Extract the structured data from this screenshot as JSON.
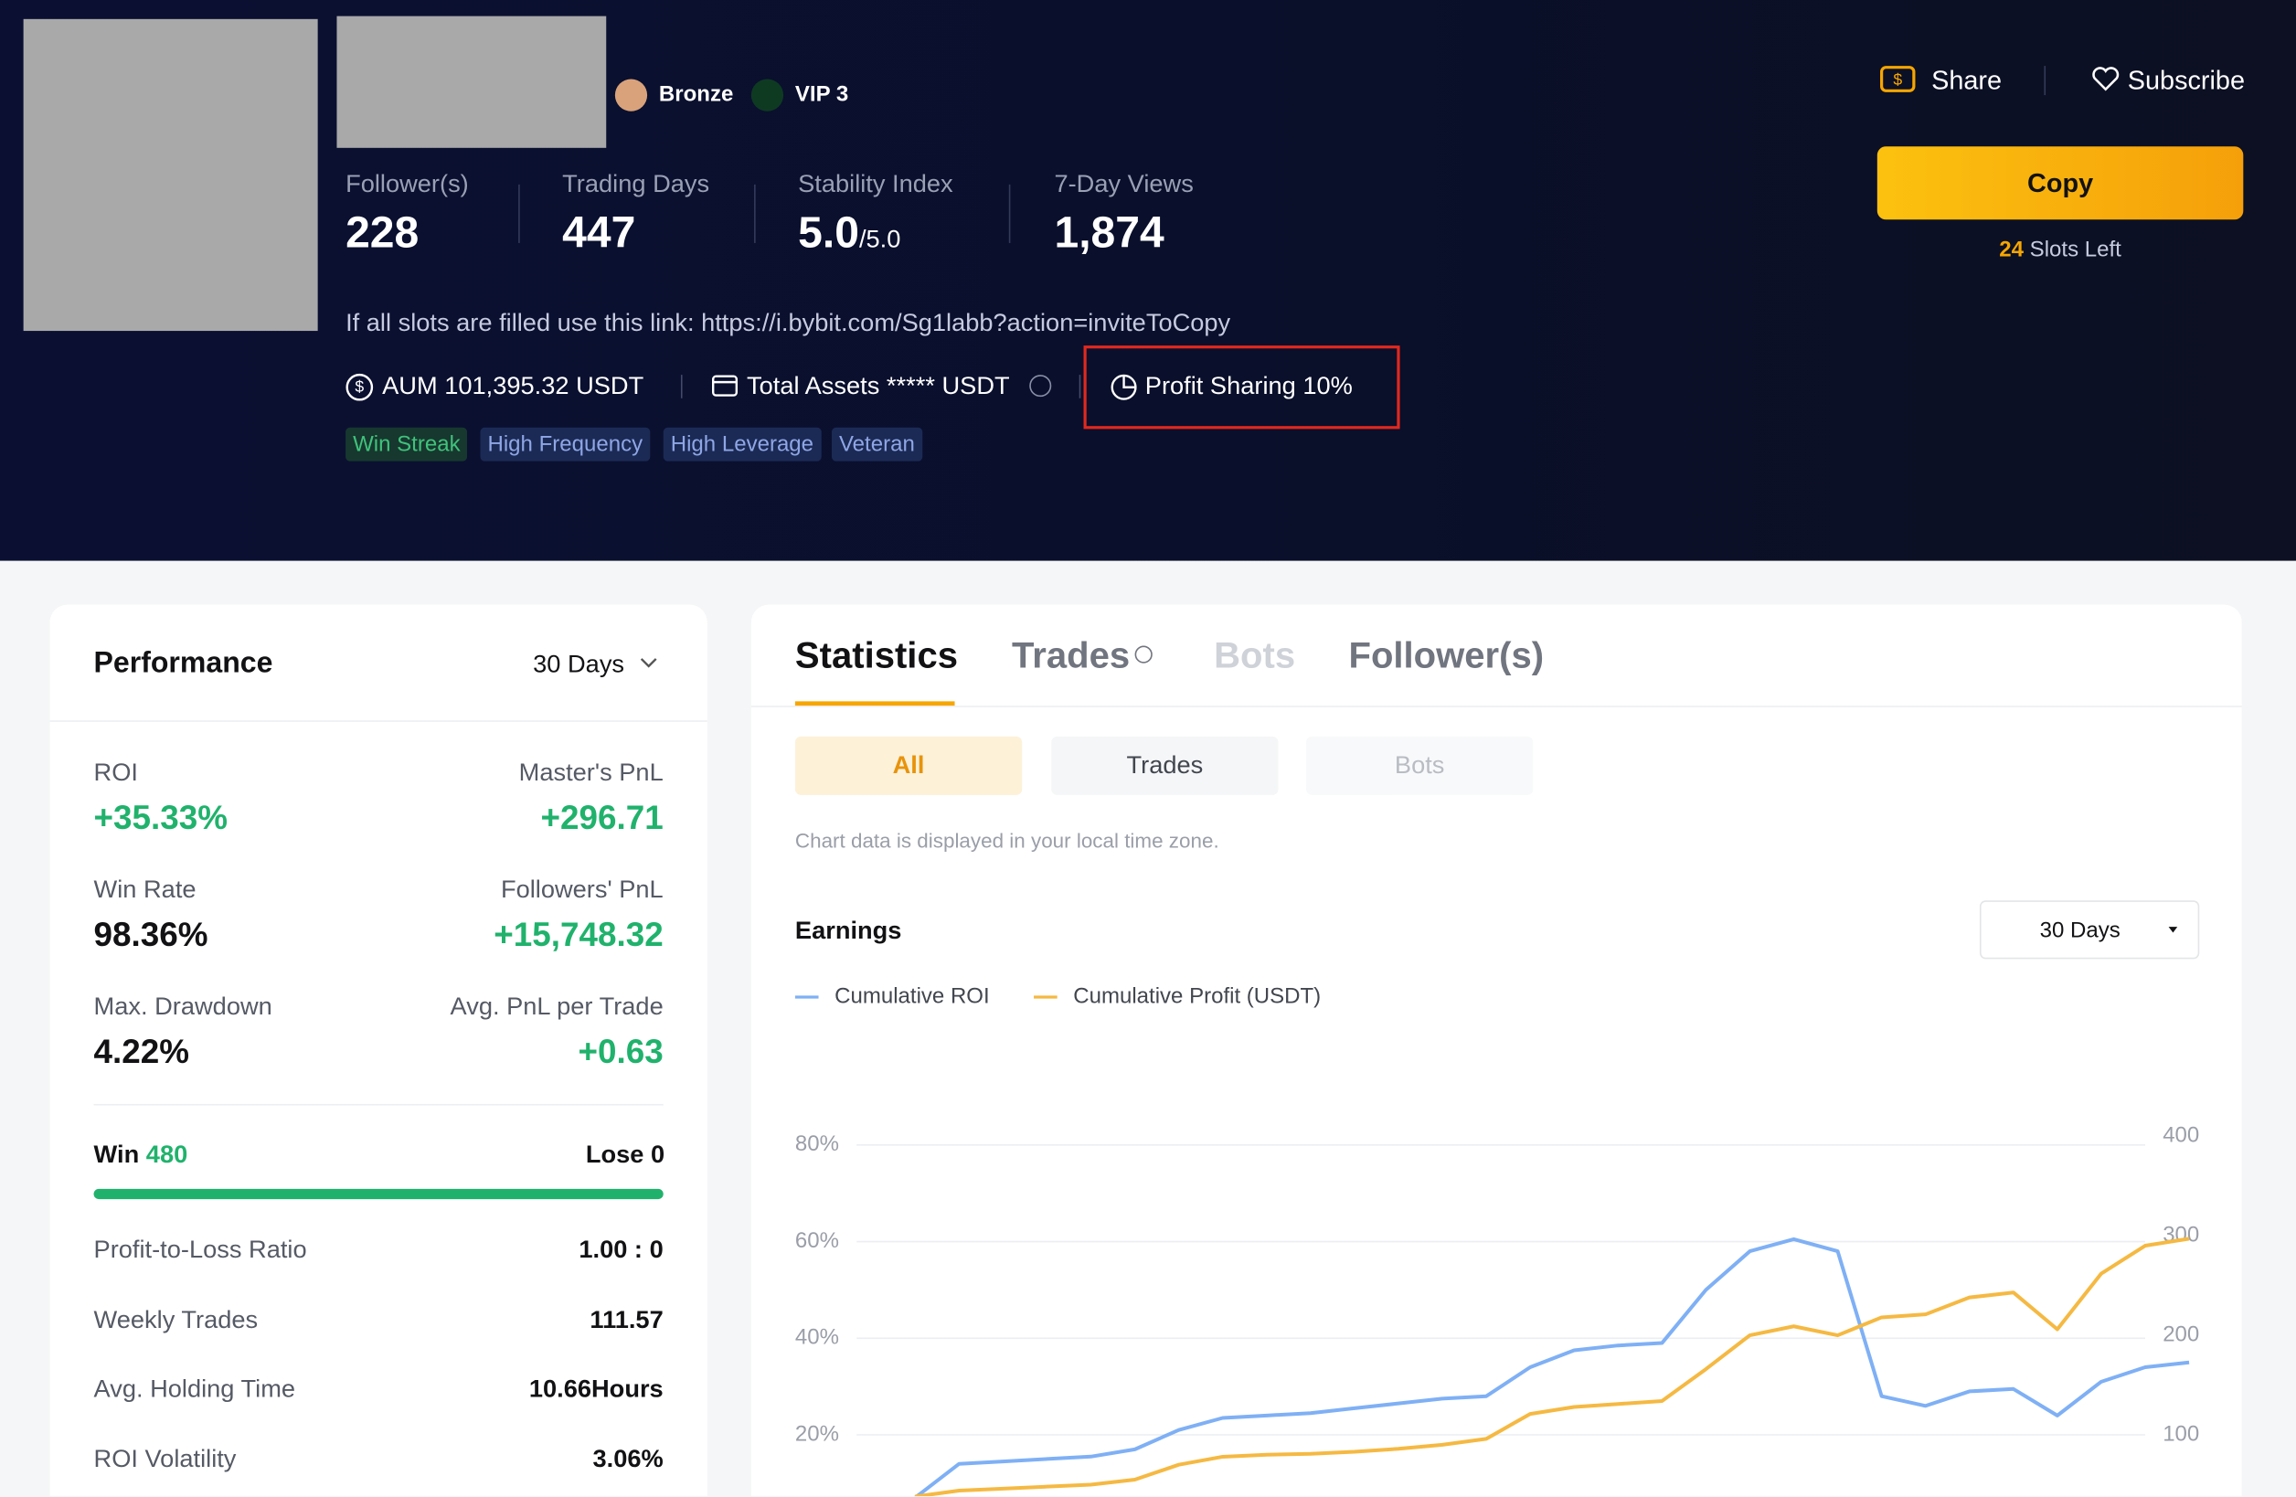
{
  "header": {
    "badges": [
      "Bronze",
      "VIP 3"
    ],
    "stats": [
      {
        "label": "Follower(s)",
        "value": "228"
      },
      {
        "label": "Trading Days",
        "value": "447"
      },
      {
        "label": "Stability Index",
        "value": "5.0",
        "suffix": "/5.0"
      },
      {
        "label": "7-Day Views",
        "value": "1,874"
      }
    ],
    "link_text": "If all slots are filled use this link: https://i.bybit.com/Sg1labb?action=inviteToCopy",
    "aum": "AUM 101,395.32 USDT",
    "total_assets": "Total Assets ***** USDT",
    "profit_sharing": "Profit Sharing 10%",
    "tags": [
      "Win Streak",
      "High Frequency",
      "High Leverage",
      "Veteran"
    ],
    "share": "Share",
    "subscribe": "Subscribe",
    "copy": "Copy",
    "slots": {
      "count": "24",
      "label": "Slots Left"
    }
  },
  "performance": {
    "title": "Performance",
    "period": "30 Days",
    "metrics": [
      {
        "label": "ROI",
        "value": "+35.33%"
      },
      {
        "label": "Master's PnL",
        "value": "+296.71"
      },
      {
        "label": "Win Rate",
        "value": "98.36%"
      },
      {
        "label": "Followers' PnL",
        "value": "+15,748.32"
      },
      {
        "label": "Max. Drawdown",
        "value": "4.22%"
      },
      {
        "label": "Avg. PnL per Trade",
        "value": "+0.63"
      }
    ],
    "win": {
      "label": "Win",
      "value": "480"
    },
    "lose": {
      "label": "Lose",
      "value": "0"
    },
    "rows": [
      {
        "label": "Profit-to-Loss Ratio",
        "value": "1.00 : 0"
      },
      {
        "label": "Weekly Trades",
        "value": "111.57"
      },
      {
        "label": "Avg. Holding Time",
        "value": "10.66Hours"
      },
      {
        "label": "ROI Volatility",
        "value": "3.06%"
      }
    ]
  },
  "statistics": {
    "tabs": [
      "Statistics",
      "Trades",
      "Bots",
      "Follower(s)"
    ],
    "subtabs": [
      "All",
      "Trades",
      "Bots"
    ],
    "note": "Chart data is displayed in your local time zone.",
    "earnings_title": "Earnings",
    "period": "30 Days",
    "chart_data": {
      "type": "line",
      "categories": [
        null,
        null,
        null,
        null,
        null,
        null,
        null,
        null,
        null,
        null,
        null,
        null,
        null,
        null,
        null,
        null,
        null,
        null,
        null,
        null,
        null,
        null,
        null,
        null,
        null,
        null,
        null,
        null,
        null,
        null
      ],
      "series": [
        {
          "name": "Cumulative ROI",
          "color": "#7fb0f5",
          "values": [
            7,
            14,
            14.5,
            15,
            15.5,
            17,
            21,
            23.5,
            24,
            24.5,
            25.5,
            26.5,
            27.5,
            28,
            34,
            37.5,
            38.5,
            39,
            50,
            58,
            60.5,
            58,
            28,
            26,
            29,
            29.5,
            24,
            31,
            34,
            35
          ]
        },
        {
          "name": "Cumulative Profit (USDT)",
          "color": "#f5b942",
          "axis": "y2",
          "values": [
            38,
            44,
            46,
            48,
            50,
            55,
            70,
            78,
            80,
            81,
            83,
            86,
            90,
            96,
            121,
            128,
            131,
            134,
            166,
            200,
            209,
            200,
            218,
            221,
            238,
            243,
            206,
            262,
            290,
            297
          ]
        }
      ],
      "ylim": [
        0,
        80
      ],
      "yticks": [
        {
          "value": 20,
          "label": "20%"
        },
        {
          "value": 40,
          "label": "40%"
        },
        {
          "value": 60,
          "label": "60%"
        },
        {
          "value": 80,
          "label": "80%"
        }
      ],
      "y2lim": [
        0,
        400
      ],
      "y2ticks": [
        100,
        200,
        300,
        400
      ],
      "grid": true
    }
  }
}
